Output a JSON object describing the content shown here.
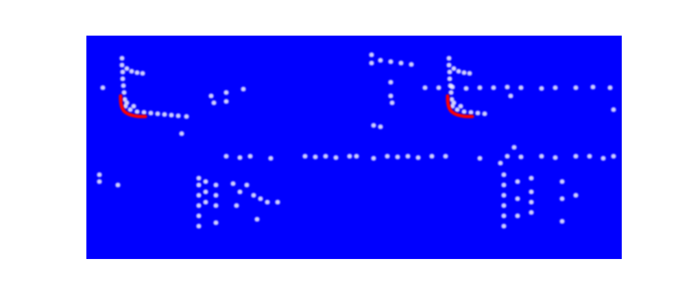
{
  "chart_data": {
    "type": "scatter",
    "tick_labels": false,
    "xlim": [
      0,
      781
    ],
    "ylim": [
      0,
      326
    ],
    "series": [
      {
        "type": "scatter",
        "color": "#ffffff",
        "x": [
          52,
          52,
          53,
          53,
          54,
          55,
          56,
          57,
          59,
          66,
          74,
          82,
          59,
          64,
          69,
          74,
          84,
          94,
          104,
          114,
          124,
          134,
          146,
          24,
          182,
          186,
          204,
          204,
          229,
          139,
          204,
          224,
          239,
          269,
          319,
          334,
          349,
          364,
          384,
          394,
          419,
          439,
          454,
          469,
          484,
          504,
          524,
          574,
          614,
          634,
          664,
          684,
          714,
          734,
          754,
          769,
          19,
          19,
          46,
          164,
          164,
          164,
          164,
          164,
          164,
          174,
          174,
          174,
          189,
          189,
          189,
          189,
          214,
          224,
          234,
          244,
          254,
          264,
          279,
          249,
          219,
          416,
          416,
          429,
          444,
          459,
          474,
          444,
          444,
          446,
          419,
          429,
          494,
          514,
          534,
          554,
          574,
          594,
          614,
          634,
          664,
          684,
          714,
          739,
          764,
          619,
          769,
          529,
          529,
          530,
          530,
          531,
          532,
          533,
          534,
          536,
          543,
          551,
          559,
          536,
          541,
          546,
          551,
          561,
          571,
          581,
          609,
          609,
          609,
          609,
          609,
          609,
          629,
          629,
          629,
          649,
          649,
          649,
          649,
          694,
          694,
          714,
          624,
          604,
          694
        ],
        "values": [
          293,
          283,
          273,
          263,
          253,
          243,
          233,
          223,
          278,
          274,
          272,
          271,
          228,
          218,
          223,
          215,
          214,
          213,
          212,
          211,
          210,
          209,
          208,
          250,
          238,
          228,
          243,
          230,
          248,
          183,
          150,
          148,
          150,
          147,
          150,
          149,
          150,
          148,
          150,
          150,
          147,
          150,
          149,
          150,
          148,
          150,
          150,
          147,
          150,
          149,
          150,
          148,
          150,
          150,
          147,
          150,
          123,
          113,
          108,
          118,
          108,
          93,
          78,
          63,
          48,
          113,
          98,
          83,
          108,
          93,
          78,
          53,
          110,
          98,
          108,
          93,
          88,
          83,
          83,
          58,
          78,
          298,
          286,
          290,
          288,
          286,
          284,
          258,
          238,
          228,
          195,
          193,
          250,
          250,
          251,
          249,
          250,
          250,
          251,
          250,
          249,
          250,
          250,
          251,
          250,
          238,
          218,
          293,
          283,
          273,
          263,
          253,
          243,
          233,
          223,
          278,
          274,
          272,
          271,
          228,
          218,
          223,
          215,
          214,
          213,
          212,
          123,
          108,
          93,
          78,
          63,
          48,
          113,
          88,
          63,
          118,
          98,
          83,
          68,
          113,
          88,
          93,
          163,
          140,
          55
        ]
      },
      {
        "type": "line",
        "color": "#ff0000",
        "x": [
          50,
          50,
          52,
          56,
          64,
          74,
          86
        ],
        "values": [
          238,
          228,
          220,
          214,
          210,
          208,
          208
        ]
      },
      {
        "type": "line",
        "color": "#ff0000",
        "x": [
          527,
          527,
          529,
          533,
          541,
          551,
          563
        ],
        "values": [
          238,
          228,
          220,
          214,
          210,
          208,
          208
        ]
      }
    ]
  }
}
